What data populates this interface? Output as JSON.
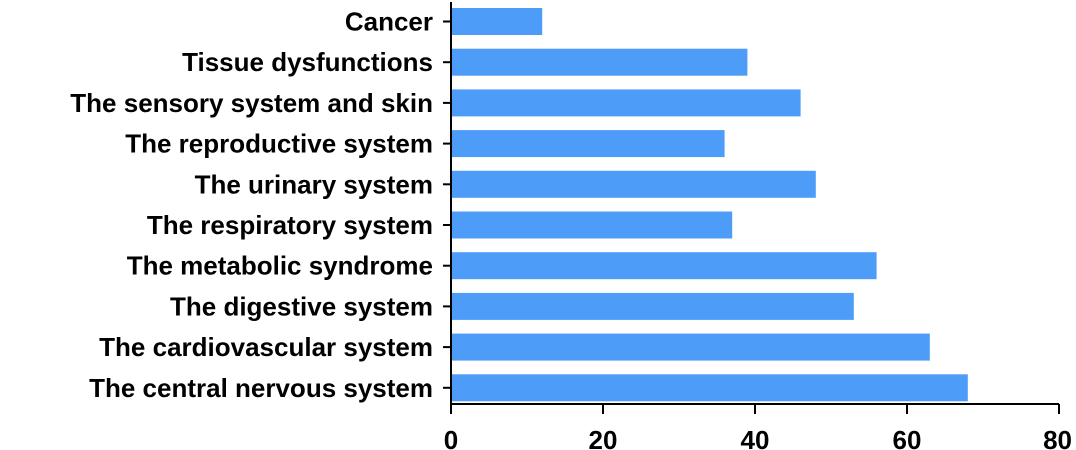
{
  "chart_data": {
    "type": "bar",
    "orientation": "horizontal",
    "categories": [
      "Cancer",
      "Tissue dysfunctions",
      "The sensory system and skin",
      "The reproductive system",
      "The urinary system",
      "The respiratory system",
      "The metabolic syndrome",
      "The digestive system",
      "The cardiovascular system",
      "The central nervous system"
    ],
    "values": [
      12,
      39,
      46,
      36,
      48,
      37,
      56,
      53,
      63,
      68
    ],
    "xlim": [
      0,
      80
    ],
    "xticks": [
      0,
      20,
      40,
      60,
      80
    ],
    "title": "",
    "xlabel": "",
    "ylabel": "",
    "grid": false,
    "bar_color": "#4d9cf8"
  }
}
